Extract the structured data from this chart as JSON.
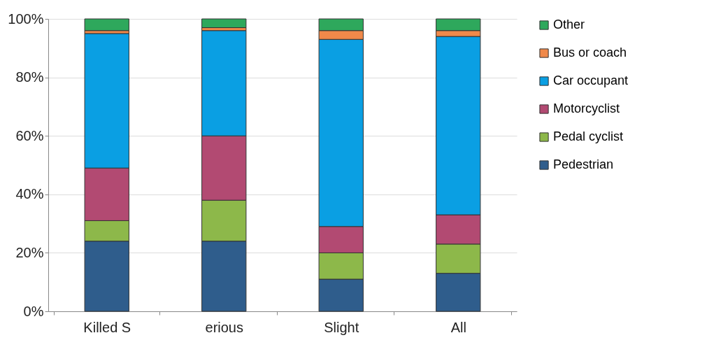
{
  "chart_data": {
    "type": "bar",
    "stacked": true,
    "categories": [
      "Killed S",
      "erious",
      "Slight",
      "All"
    ],
    "series": [
      {
        "name": "Pedestrian",
        "color": "#2f5d8c",
        "values": [
          24,
          24,
          11,
          13
        ]
      },
      {
        "name": "Pedal cyclist",
        "color": "#8db84a",
        "values": [
          7,
          14,
          9,
          10
        ]
      },
      {
        "name": "Motorcyclist",
        "color": "#b24a72",
        "values": [
          18,
          22,
          9,
          10
        ]
      },
      {
        "name": "Car occupant",
        "color": "#0a9fe3",
        "values": [
          46,
          36,
          64,
          61
        ]
      },
      {
        "name": "Bus or coach",
        "color": "#f0894a",
        "values": [
          1,
          1,
          3,
          2
        ]
      },
      {
        "name": "Other",
        "color": "#2ea85c",
        "values": [
          4,
          3,
          4,
          4
        ]
      }
    ],
    "ylim": [
      0,
      100
    ],
    "yticks": [
      {
        "value": 0,
        "label": "0%"
      },
      {
        "value": 20,
        "label": "20%"
      },
      {
        "value": 40,
        "label": "40%"
      },
      {
        "value": 60,
        "label": "60%"
      },
      {
        "value": 80,
        "label": "80%"
      },
      {
        "value": 100,
        "label": "100%"
      }
    ],
    "grid": "y",
    "legend": "right"
  }
}
